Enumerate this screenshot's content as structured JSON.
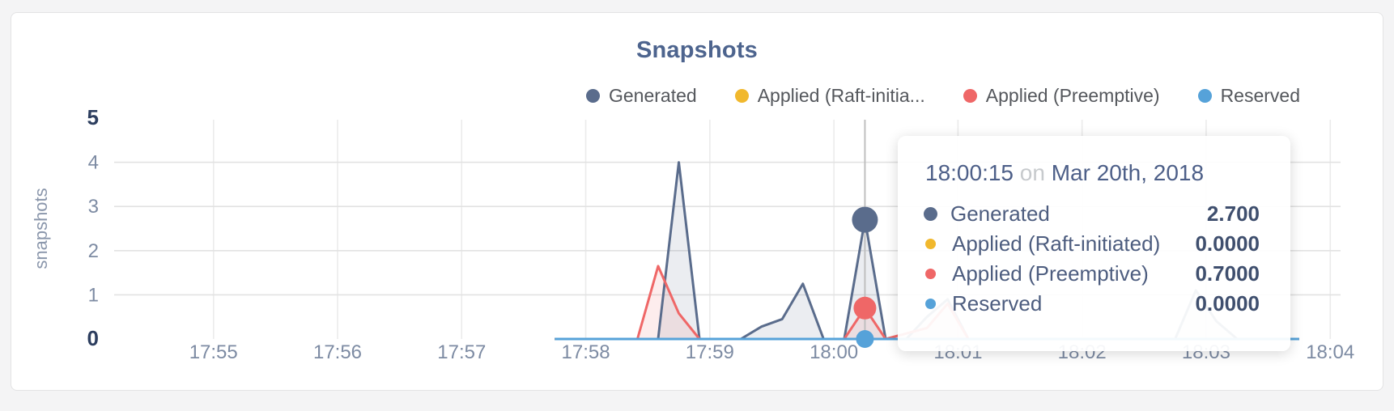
{
  "page": {
    "background": "#f4f4f5",
    "card_background": "#ffffff"
  },
  "chart": {
    "title": "Snapshots"
  },
  "legend": {
    "items": [
      {
        "label": "Generated",
        "color": "#5a6c8c"
      },
      {
        "label": "Applied (Raft-initia...",
        "color": "#f1b82d"
      },
      {
        "label": "Applied (Preemptive)",
        "color": "#ef6767"
      },
      {
        "label": "Reserved",
        "color": "#56a2d9"
      }
    ]
  },
  "tooltip": {
    "time": "18:00:15",
    "conjunction": "on",
    "date": "Mar 20th, 2018",
    "rows": [
      {
        "label": "Generated",
        "value": "2.700",
        "color": "#5a6c8c"
      },
      {
        "label": "Applied (Raft-initiated)",
        "value": "0.0000",
        "color": "#f1b82d"
      },
      {
        "label": "Applied (Preemptive)",
        "value": "0.7000",
        "color": "#ef6767"
      },
      {
        "label": "Reserved",
        "value": "0.0000",
        "color": "#56a2d9"
      }
    ]
  },
  "chart_data": {
    "type": "area",
    "title": "Snapshots",
    "xlabel": "",
    "ylabel": "snapshots",
    "ylim": [
      0,
      5
    ],
    "yticks": [
      0,
      1,
      2,
      3,
      4,
      5
    ],
    "emphasized_yticks": [
      0,
      5
    ],
    "xticks": [
      "17:55",
      "17:56",
      "17:57",
      "17:58",
      "17:59",
      "18:00",
      "18:01",
      "18:02",
      "18:03",
      "18:04"
    ],
    "x_domain": [
      "17:54:10",
      "18:04:05"
    ],
    "grid": true,
    "legend_position": "top-right",
    "colors": {
      "grid_horizontal": "#e2e2e2",
      "grid_vertical": "#ebebeb",
      "tick_label": "#7d8ba3",
      "tick_label_emphasized": "#2d3e5f",
      "axis_label": "#8a96ab",
      "crosshair": "#bfbfbf"
    },
    "series": [
      {
        "name": "Generated",
        "color": "#5a6c8c",
        "fill": "rgba(90,108,140,0.12)",
        "points": [
          [
            "17:57:45",
            0
          ],
          [
            "17:58:35",
            0
          ],
          [
            "17:58:45",
            4
          ],
          [
            "17:58:55",
            0
          ],
          [
            "17:59:15",
            0
          ],
          [
            "17:59:25",
            0.28
          ],
          [
            "17:59:35",
            0.45
          ],
          [
            "17:59:45",
            1.25
          ],
          [
            "17:59:55",
            0
          ],
          [
            "18:00:05",
            0
          ],
          [
            "18:00:15",
            2.7
          ],
          [
            "18:00:25",
            0
          ],
          [
            "18:00:35",
            0
          ],
          [
            "18:00:45",
            0.5
          ],
          [
            "18:00:55",
            0.9
          ],
          [
            "18:01:05",
            0
          ],
          [
            "18:02:45",
            0
          ],
          [
            "18:02:55",
            1.1
          ],
          [
            "18:03:05",
            0.4
          ],
          [
            "18:03:15",
            0
          ],
          [
            "18:03:45",
            0
          ]
        ]
      },
      {
        "name": "Applied (Raft-initiated)",
        "color": "#f1b82d",
        "fill": "none",
        "points": [
          [
            "17:57:45",
            0
          ],
          [
            "18:03:45",
            0
          ]
        ]
      },
      {
        "name": "Applied (Preemptive)",
        "color": "#ef6767",
        "fill": "rgba(239,103,103,0.12)",
        "points": [
          [
            "17:57:45",
            0
          ],
          [
            "17:58:25",
            0
          ],
          [
            "17:58:35",
            1.65
          ],
          [
            "17:58:45",
            0.58
          ],
          [
            "17:58:55",
            0
          ],
          [
            "18:00:05",
            0
          ],
          [
            "18:00:15",
            0.7
          ],
          [
            "18:00:25",
            0
          ],
          [
            "18:00:45",
            0.25
          ],
          [
            "18:00:55",
            0.8
          ],
          [
            "18:01:05",
            0
          ],
          [
            "18:03:45",
            0
          ]
        ]
      },
      {
        "name": "Reserved",
        "color": "#56a2d9",
        "fill": "none",
        "points": [
          [
            "17:57:45",
            0
          ],
          [
            "18:03:45",
            0
          ]
        ]
      }
    ],
    "highlight": {
      "time": "18:00:15",
      "dots": [
        {
          "series": "Generated",
          "value": 2.7,
          "radius": 16
        },
        {
          "series": "Applied (Preemptive)",
          "value": 0.7,
          "radius": 14
        },
        {
          "series": "Reserved",
          "value": 0,
          "radius": 11
        }
      ]
    }
  }
}
